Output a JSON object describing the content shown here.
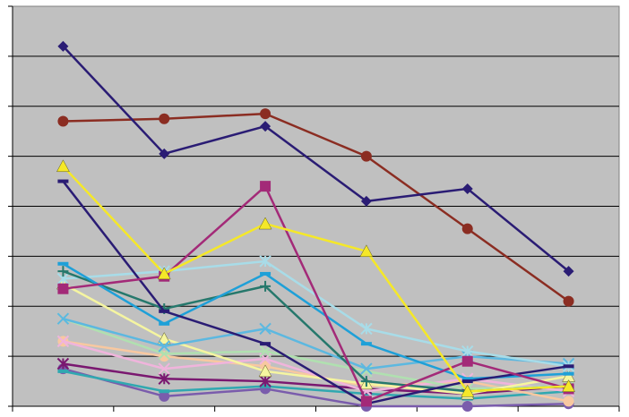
{
  "chart_data": {
    "type": "line",
    "title": "",
    "xlabel": "",
    "ylabel": "",
    "x": [
      1,
      2,
      3,
      4,
      5,
      6
    ],
    "xlim": [
      0.5,
      6.5
    ],
    "ylim": [
      0,
      8
    ],
    "grid": true,
    "legend": "none",
    "plot_background": "#c0c0c0",
    "series": [
      {
        "color": "#2a1c74",
        "marker": "diamond",
        "values": [
          7.2,
          5.05,
          5.6,
          4.1,
          4.35,
          2.7
        ]
      },
      {
        "color": "#8b2d22",
        "marker": "circle",
        "values": [
          5.7,
          5.75,
          5.85,
          5.0,
          3.55,
          2.1
        ]
      },
      {
        "color": "#f5e828",
        "marker": "triangle",
        "values": [
          4.8,
          2.65,
          3.65,
          3.1,
          0.3,
          0.4
        ]
      },
      {
        "color": "#a32a78",
        "marker": "square",
        "values": [
          2.35,
          2.6,
          4.4,
          0.1,
          0.9,
          0.35
        ]
      },
      {
        "color": "#2a1c74",
        "marker": "dash",
        "values": [
          4.5,
          1.9,
          1.25,
          0.05,
          0.5,
          0.8
        ]
      },
      {
        "color": "#1ea0d8",
        "marker": "dash",
        "values": [
          2.85,
          1.65,
          2.65,
          1.25,
          0.55,
          0.65
        ]
      },
      {
        "color": "#26786c",
        "marker": "plus",
        "values": [
          2.7,
          1.95,
          2.4,
          0.5,
          0.3,
          0.4
        ]
      },
      {
        "color": "#a8dce8",
        "marker": "asterisk",
        "values": [
          2.55,
          2.7,
          2.9,
          1.55,
          1.1,
          0.8
        ]
      },
      {
        "color": "#5cb8e0",
        "marker": "x",
        "values": [
          1.75,
          1.2,
          1.55,
          0.75,
          1.0,
          0.85
        ]
      },
      {
        "color": "#f5f5a0",
        "marker": "triangle",
        "values": [
          2.45,
          1.35,
          0.7,
          0.45,
          0.25,
          0.6
        ]
      },
      {
        "color": "#b0e0b0",
        "marker": "x",
        "values": [
          1.75,
          1.05,
          1.1,
          0.7,
          0.35,
          0.4
        ]
      },
      {
        "color": "#f0b4dc",
        "marker": "x",
        "values": [
          1.3,
          0.75,
          0.95,
          0.3,
          0.55,
          0.3
        ]
      },
      {
        "color": "#f8c8a0",
        "marker": "circle",
        "values": [
          1.3,
          1.0,
          0.8,
          0.4,
          0.5,
          0.1
        ]
      },
      {
        "color": "#7a1870",
        "marker": "asterisk",
        "values": [
          0.85,
          0.55,
          0.5,
          0.35,
          0.25,
          0.4
        ]
      },
      {
        "color": "#30a8b0",
        "marker": "dash",
        "values": [
          0.7,
          0.3,
          0.4,
          0.25,
          0.15,
          0.3
        ]
      },
      {
        "color": "#7a5cac",
        "marker": "circle",
        "values": [
          0.75,
          0.2,
          0.35,
          0.0,
          0.0,
          0.05
        ]
      }
    ]
  }
}
